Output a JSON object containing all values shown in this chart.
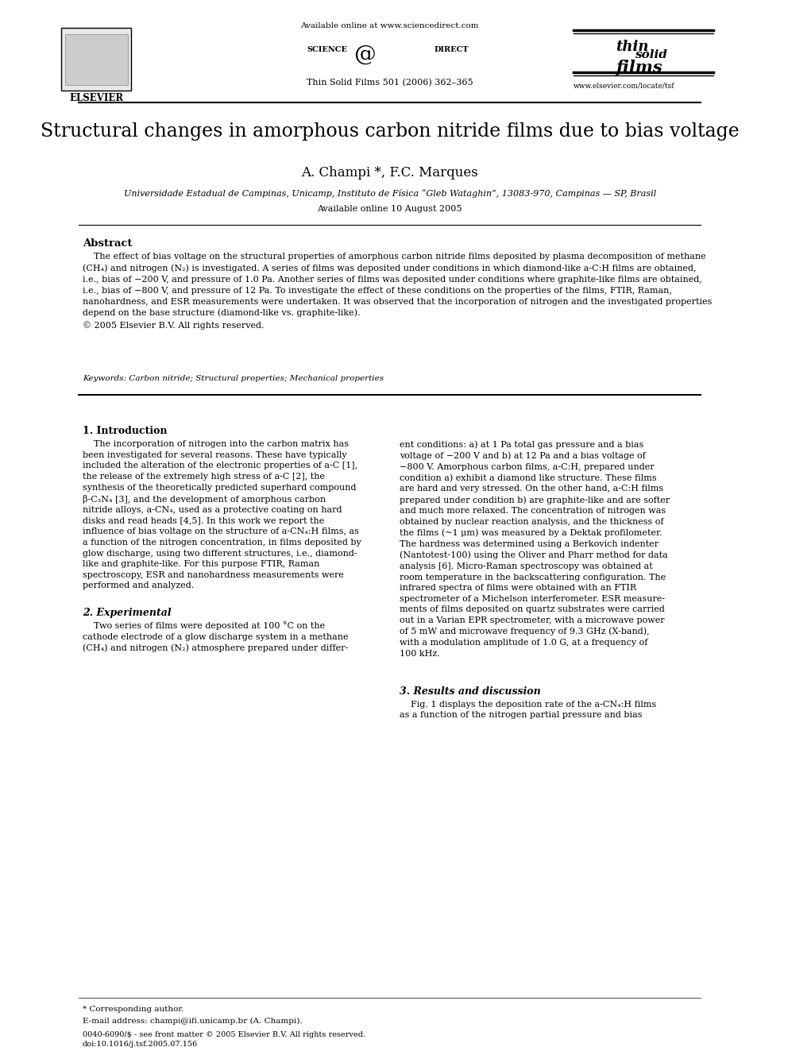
{
  "title": "Structural changes in amorphous carbon nitride films due to bias voltage",
  "authors": "A. Champi *, F.C. Marques",
  "affiliation": "Universidade Estadual de Campinas, Unicamp, Instituto de Física “Gleb Wataghin”, 13083-970, Campinas — SP, Brasil",
  "available_online": "Available online 10 August 2005",
  "journal_info": "Thin Solid Films 501 (2006) 362–365",
  "science_direct_url": "Available online at www.sciencedirect.com",
  "journal_website": "www.elsevier.com/locate/tsf",
  "journal_issn": "0040-6090/$ - see front matter © 2005 Elsevier B.V. All rights reserved.",
  "doi": "doi:10.1016/j.tsf.2005.07.156",
  "abstract_title": "Abstract",
  "abstract_text": "The effect of bias voltage on the structural properties of amorphous carbon nitride films deposited by plasma decomposition of methane (CH₄) and nitrogen (N₂) is investigated. A series of films was deposited under conditions in which diamond-like a-C:H films are obtained, i.e., bias of −200 V, and pressure of 1.0 Pa. Another series of films was deposited under conditions where graphite-like films are obtained, i.e., bias of −800 V, and pressure of 12 Pa. To investigate the effect of these conditions on the properties of the films, FTIR, Raman, nanohardness, and ESR measurements were undertaken. It was observed that the incorporation of nitrogen and the investigated properties depend on the base structure (diamond-like vs. graphite-like).\n© 2005 Elsevier B.V. All rights reserved.",
  "keywords": "Keywords: Carbon nitride; Structural properties; Mechanical properties",
  "section1_title": "1. Introduction",
  "section1_col1": "The incorporation of nitrogen into the carbon matrix has been investigated for several reasons. These have typically included the alteration of the electronic properties of a-C [1], the release of the extremely high stress of a-C [2], the synthesis of the theoretically predicted superhard compound β-C₃N₄ [3], and the development of amorphous carbon nitride alloys, a-CN₄, used as a protective coating on hard disks and read heads [4,5]. In this work we report the influence of bias voltage on the structure of a-CN₄:H films, as a function of the nitrogen concentration, in films deposited by glow discharge, using two different structures, i.e., diamond-like and graphite-like. For this purpose FTIR, Raman spectroscopy, ESR and nanohardness measurements were performed and analyzed.",
  "section2_title": "2. Experimental",
  "section2_col1": "Two series of films were deposited at 100 °C on the cathode electrode of a glow discharge system in a methane (CH₄) and nitrogen (N₂) atmosphere prepared under differ-",
  "section1_col2": "ent conditions: a) at 1 Pa total gas pressure and a bias voltage of −200 V and b) at 12 Pa and a bias voltage of −800 V. Amorphous carbon films, a-C:H, prepared under condition a) exhibit a diamond like structure. These films are hard and very stressed. On the other hand, a-C:H films prepared under condition b) are graphite-like and are softer and much more relaxed. The concentration of nitrogen was obtained by nuclear reaction analysis, and the thickness of the films (~1 μm) was measured by a Dektak profilometer. The hardness was determined using a Berkovich indenter (Nantotest-100) using the Oliver and Pharr method for data analysis [6]. Micro-Raman spectroscopy was obtained at room temperature in the backscattering configuration. The infrared spectra of films were obtained with an FTIR spectrometer of a Michelson interferometer. ESR measurements of films deposited on quartz substrates were carried out in a Varian EPR spectrometer, with a microwave power of 5 mW and microwave frequency of 9.3 GHz (X-band), with a modulation amplitude of 1.0 G, at a frequency of 100 kHz.",
  "section3_title": "3. Results and discussion",
  "section3_col2": "Fig. 1 displays the deposition rate of the a-CN₄:H films as a function of the nitrogen partial pressure and bias",
  "footnote_corresponding": "* Corresponding author.",
  "footnote_email": "E-mail address: champi@ifi.unicamp.br (A. Champi).",
  "footnote_bottom": "0040-6090/$ - see front matter © 2005 Elsevier B.V. All rights reserved.\ndoi:10.1016/j.tsf.2005.07.156",
  "bg_color": "#ffffff",
  "text_color": "#000000",
  "link_color": "#0000cc"
}
